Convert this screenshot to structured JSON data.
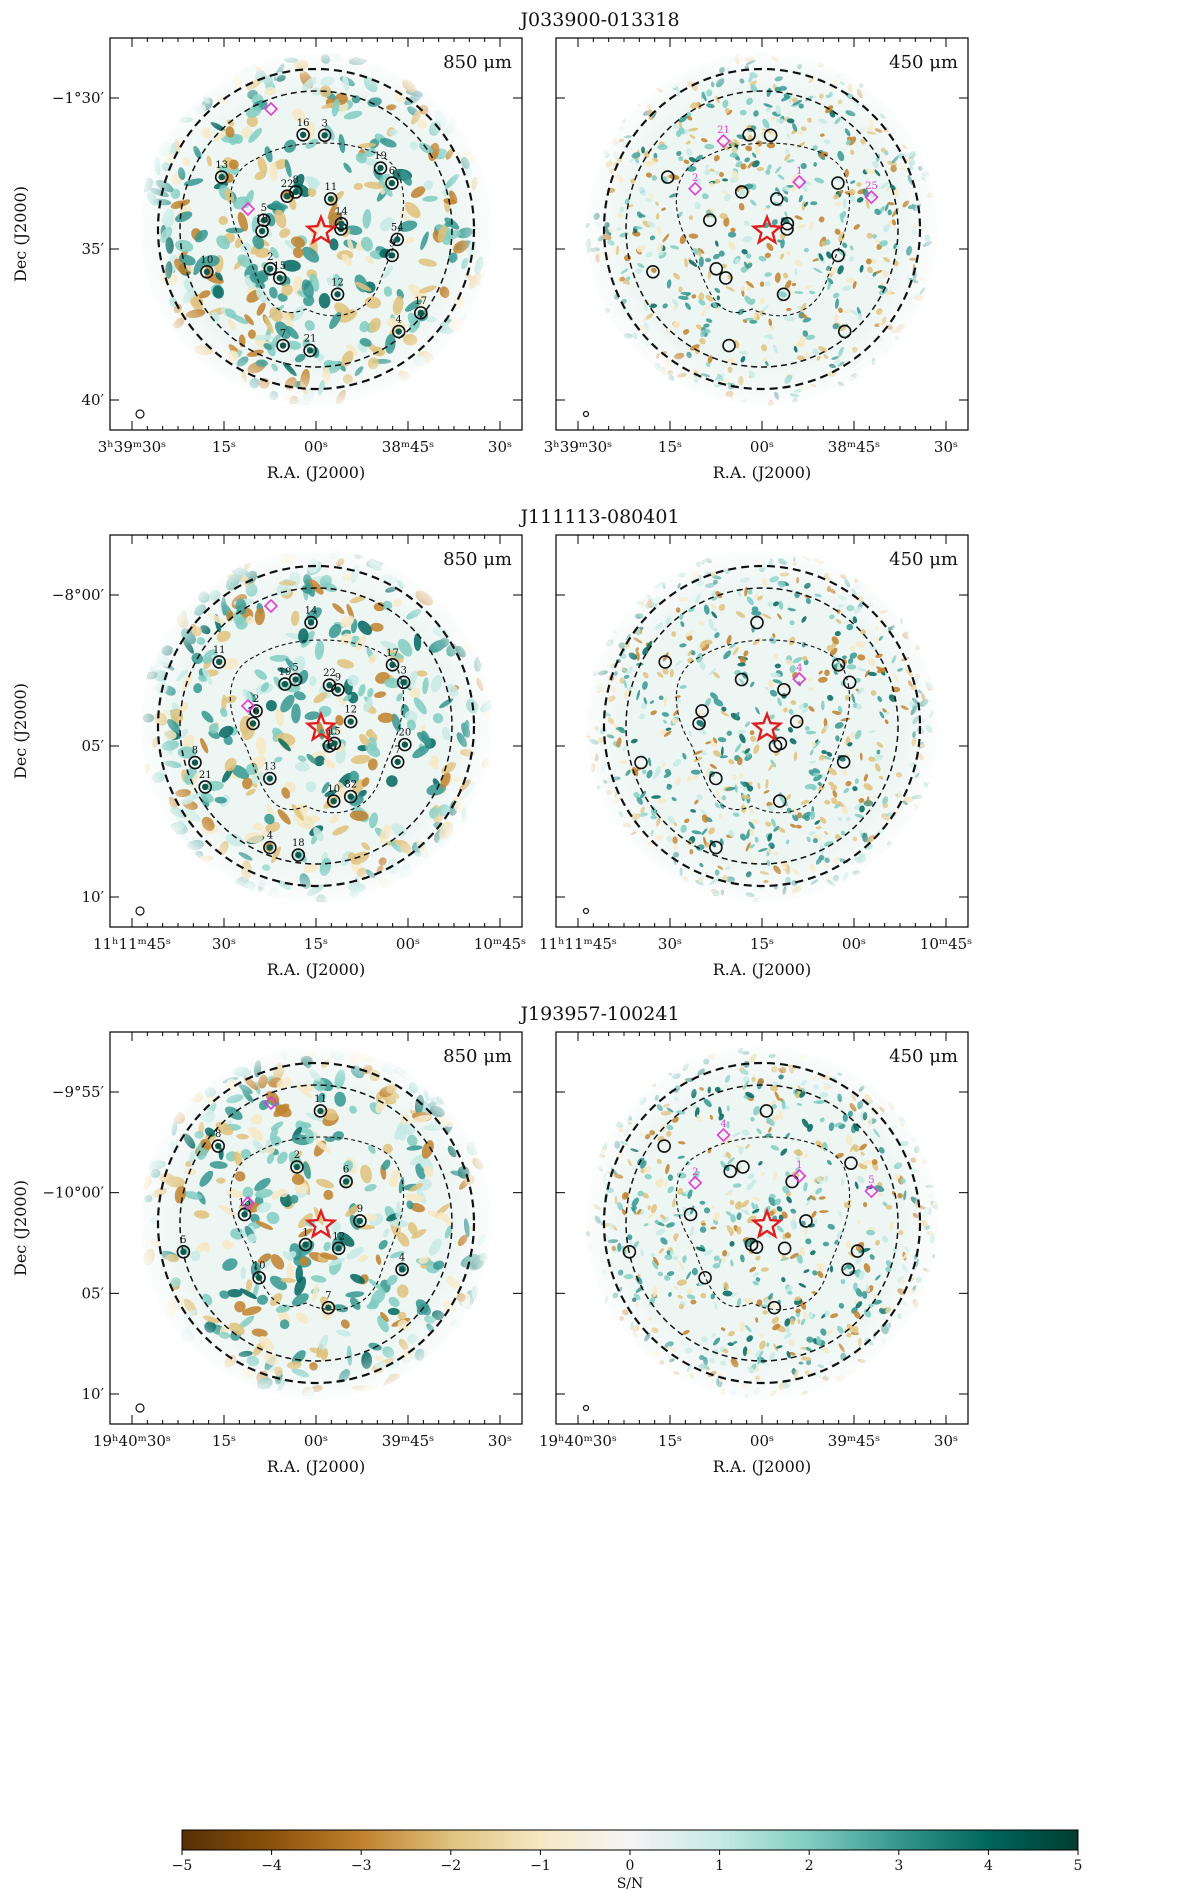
{
  "colorbar": {
    "label": "S/N",
    "ticks": [
      "−5",
      "−4",
      "−3",
      "−2",
      "−1",
      "0",
      "1",
      "2",
      "3",
      "4",
      "5"
    ],
    "range": [
      -5,
      5
    ],
    "colors": {
      "neg": "#543005",
      "mid": "#f5f5f5",
      "pos": "#003c30"
    }
  },
  "fields": [
    {
      "title": "J033900-013318",
      "ra_axis_label": "R.A. (J2000)",
      "dec_axis_label": "Dec (J2000)",
      "ra_ticks": [
        "3h39m30s",
        "15s",
        "00s",
        "38m45s",
        "30s"
      ],
      "dec_ticks": [
        "−1°30′",
        "35′",
        "40′"
      ],
      "panels": [
        {
          "band": "850 μm",
          "numbered_sources": [
            "1",
            "2",
            "3",
            "4",
            "5",
            "6",
            "7",
            "8",
            "9",
            "10",
            "11",
            "12",
            "13",
            "14",
            "15",
            "16",
            "17",
            "18",
            "19",
            "21",
            "22",
            "54"
          ],
          "diamond_labels": []
        },
        {
          "band": "450 μm",
          "numbered_sources": [],
          "diamond_labels": [
            "1",
            "2",
            "21",
            "25"
          ]
        }
      ]
    },
    {
      "title": "J111113-080401",
      "ra_axis_label": "R.A. (J2000)",
      "dec_axis_label": "Dec (J2000)",
      "ra_ticks": [
        "11h11m45s",
        "30s",
        "15s",
        "00s",
        "10m45s"
      ],
      "dec_ticks": [
        "−8°00′",
        "05′",
        "10′"
      ],
      "panels": [
        {
          "band": "850 μm",
          "numbered_sources": [
            "1",
            "2",
            "3",
            "4",
            "5",
            "7",
            "8",
            "9",
            "10",
            "11",
            "12",
            "13",
            "14",
            "15",
            "16",
            "17",
            "18",
            "19",
            "20",
            "21",
            "22",
            "82"
          ],
          "diamond_labels": []
        },
        {
          "band": "450 μm",
          "numbered_sources": [],
          "diamond_labels": [
            "4"
          ]
        }
      ]
    },
    {
      "title": "J193957-100241",
      "ra_axis_label": "R.A. (J2000)",
      "dec_axis_label": "Dec (J2000)",
      "ra_ticks": [
        "19h40m30s",
        "15s",
        "00s",
        "39m45s",
        "30s"
      ],
      "dec_ticks": [
        "−9°55′",
        "−10°00′",
        "05′",
        "10′"
      ],
      "panels": [
        {
          "band": "850 μm",
          "numbered_sources": [
            "1",
            "2",
            "4",
            "5",
            "6",
            "7",
            "8",
            "9",
            "10",
            "11",
            "12",
            "13"
          ],
          "diamond_labels": []
        },
        {
          "band": "450 μm",
          "numbered_sources": [],
          "diamond_labels": [
            "1",
            "2",
            "4",
            "5"
          ]
        }
      ]
    }
  ]
}
